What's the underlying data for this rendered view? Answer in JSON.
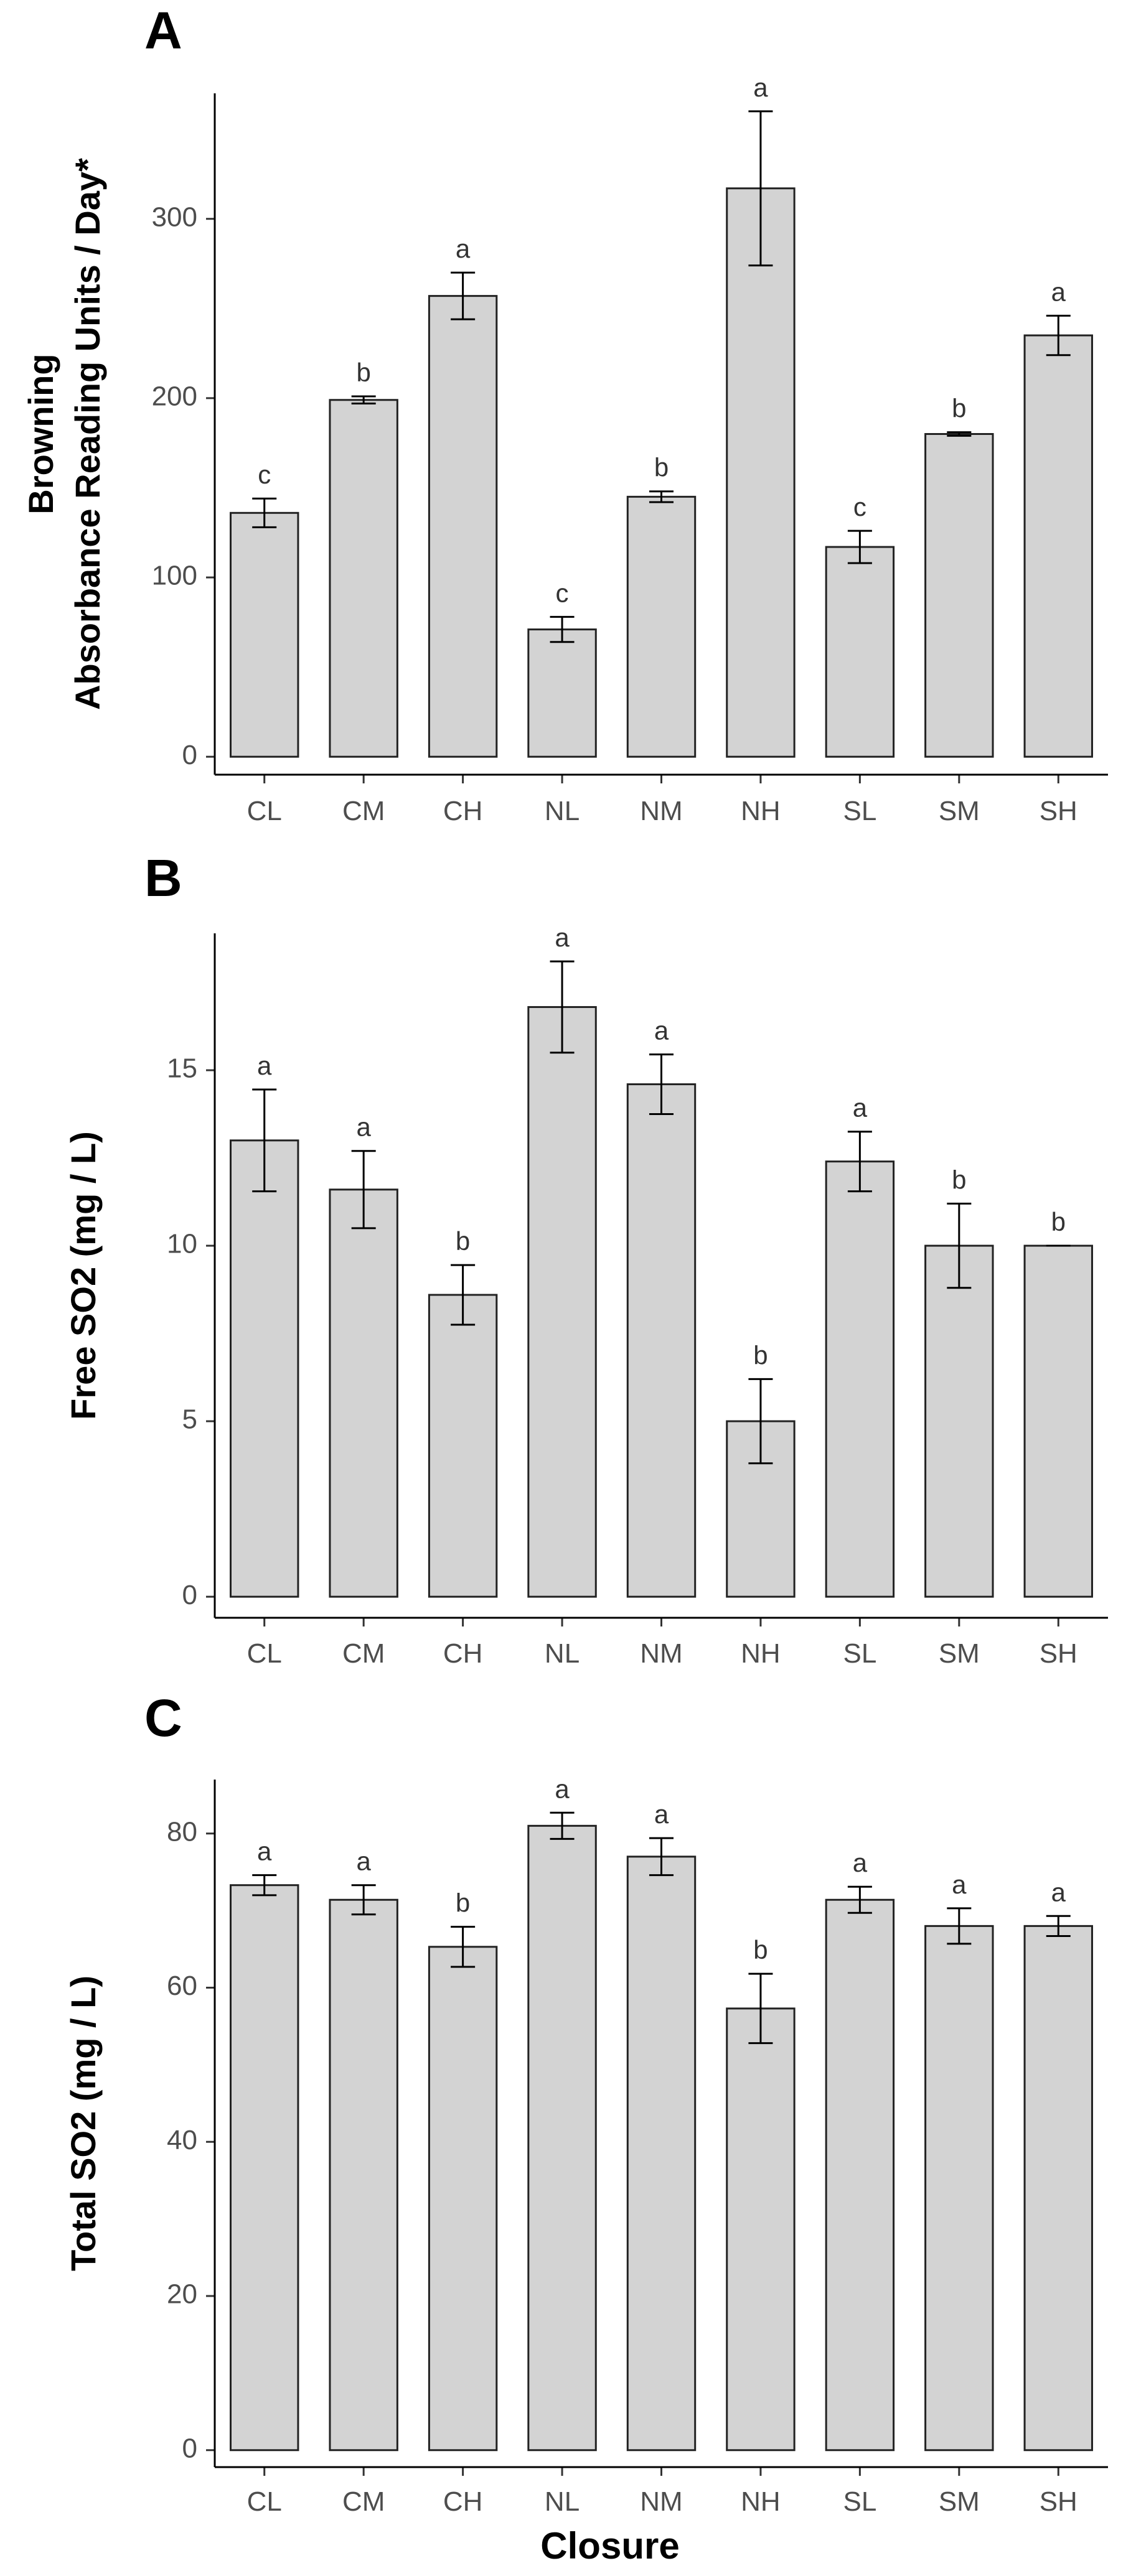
{
  "figure": {
    "xlabel": "Closure",
    "bar_color": "#d3d3d3",
    "bar_stroke": "#222222"
  },
  "chart_data": [
    {
      "type": "bar",
      "panel": "A",
      "ylabel_lines": [
        "Browning",
        "Absorbance Reading Units / Day*"
      ],
      "categories": [
        "CL",
        "CM",
        "CH",
        "NL",
        "NM",
        "NH",
        "SL",
        "SM",
        "SH"
      ],
      "values": [
        136,
        199,
        257,
        71,
        145,
        317,
        117,
        180,
        235
      ],
      "errors": [
        8,
        2,
        13,
        7,
        3,
        43,
        9,
        1,
        11
      ],
      "significance": [
        "c",
        "b",
        "a",
        "c",
        "b",
        "a",
        "c",
        "b",
        "a"
      ],
      "ylim": [
        -10,
        370
      ],
      "yticks": [
        0,
        100,
        200,
        300
      ],
      "xlabel": "",
      "grid": false
    },
    {
      "type": "bar",
      "panel": "B",
      "ylabel_lines": [
        "Free SO2 (mg / L)"
      ],
      "categories": [
        "CL",
        "CM",
        "CH",
        "NL",
        "NM",
        "NH",
        "SL",
        "SM",
        "SH"
      ],
      "values": [
        13.0,
        11.6,
        8.6,
        16.8,
        14.6,
        5.0,
        12.4,
        10.0,
        10.0
      ],
      "errors": [
        1.45,
        1.1,
        0.85,
        1.3,
        0.85,
        1.2,
        0.85,
        1.2,
        0.0
      ],
      "significance": [
        "a",
        "a",
        "b",
        "a",
        "a",
        "b",
        "a",
        "b",
        "b"
      ],
      "ylim": [
        -0.6,
        18.9
      ],
      "yticks": [
        0,
        5,
        10,
        15
      ],
      "xlabel": "",
      "grid": false
    },
    {
      "type": "bar",
      "panel": "C",
      "ylabel_lines": [
        "Total SO2 (mg / L)"
      ],
      "categories": [
        "CL",
        "CM",
        "CH",
        "NL",
        "NM",
        "NH",
        "SL",
        "SM",
        "SH"
      ],
      "values": [
        73.3,
        71.4,
        65.3,
        81.0,
        77.0,
        57.3,
        71.4,
        68.0,
        68.0
      ],
      "errors": [
        1.3,
        1.9,
        2.6,
        1.7,
        2.4,
        4.5,
        1.7,
        2.3,
        1.3
      ],
      "significance": [
        "a",
        "a",
        "b",
        "a",
        "a",
        "b",
        "a",
        "a",
        "a"
      ],
      "ylim": [
        -2.2,
        87
      ],
      "yticks": [
        0,
        20,
        40,
        60,
        80
      ],
      "xlabel": "Closure",
      "grid": false
    }
  ]
}
